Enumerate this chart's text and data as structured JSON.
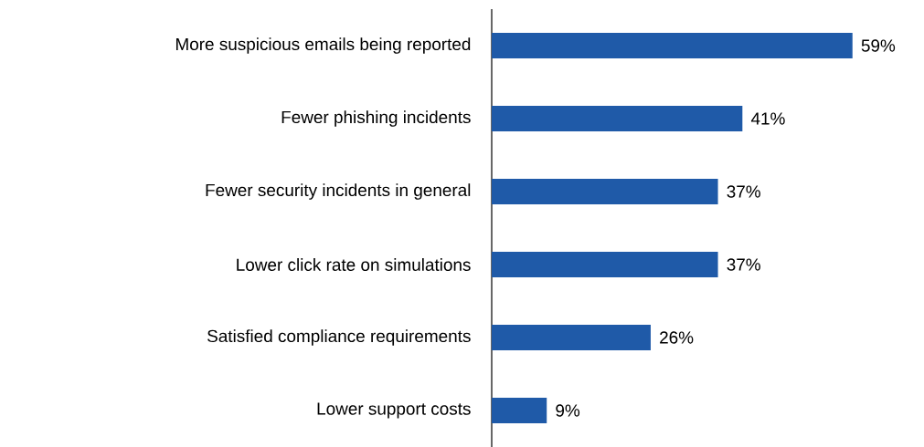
{
  "chart_data": {
    "type": "bar",
    "orientation": "horizontal",
    "categories": [
      "More suspicious emails being reported",
      "Fewer phishing incidents",
      "Fewer security incidents in general",
      "Lower click rate on simulations",
      "Satisfied compliance requirements",
      "Lower support costs"
    ],
    "values": [
      59,
      41,
      37,
      37,
      26,
      9
    ],
    "value_labels": [
      "59%",
      "41%",
      "37%",
      "37%",
      "26%",
      "9%"
    ],
    "color": "#1f5aa8",
    "tick_labels": "y"
  }
}
